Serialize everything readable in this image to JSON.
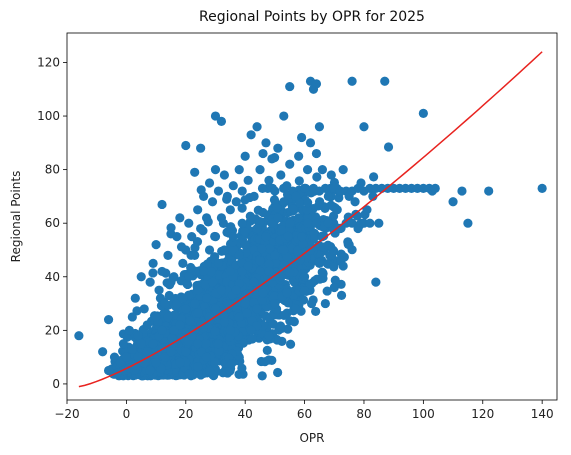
{
  "chart_data": {
    "type": "scatter",
    "title": "Regional Points by OPR for 2025",
    "xlabel": "OPR",
    "ylabel": "Regional Points",
    "xlim": [
      -20,
      145
    ],
    "ylim": [
      -6,
      131
    ],
    "xticks": [
      -20,
      0,
      20,
      40,
      60,
      80,
      100,
      120,
      140
    ],
    "yticks": [
      0,
      20,
      40,
      60,
      80,
      100,
      120
    ],
    "grid": false,
    "colors": {
      "points": "#1f77b4",
      "fit": "#e8231f"
    },
    "series": [
      {
        "type": "scatter",
        "points": [
          [
            -16,
            18
          ],
          [
            -8,
            12
          ],
          [
            -6,
            24
          ],
          [
            -6,
            5
          ],
          [
            -4,
            10
          ],
          [
            -3,
            4
          ],
          [
            -2,
            8
          ],
          [
            -1,
            15
          ],
          [
            -1,
            5
          ],
          [
            0,
            10
          ],
          [
            1,
            20
          ],
          [
            1,
            6
          ],
          [
            2,
            25
          ],
          [
            2,
            13
          ],
          [
            3,
            32
          ],
          [
            3,
            7
          ],
          [
            4,
            18
          ],
          [
            4,
            10
          ],
          [
            5,
            40
          ],
          [
            5,
            15
          ],
          [
            6,
            28
          ],
          [
            6,
            8
          ],
          [
            7,
            22
          ],
          [
            7,
            12
          ],
          [
            8,
            38
          ],
          [
            8,
            5
          ],
          [
            9,
            45
          ],
          [
            9,
            15
          ],
          [
            10,
            52
          ],
          [
            10,
            25
          ],
          [
            10,
            8
          ],
          [
            11,
            35
          ],
          [
            11,
            18
          ],
          [
            12,
            67
          ],
          [
            12,
            42
          ],
          [
            12,
            20
          ],
          [
            13,
            30
          ],
          [
            13,
            10
          ],
          [
            14,
            48
          ],
          [
            14,
            25
          ],
          [
            15,
            56
          ],
          [
            15,
            38
          ],
          [
            15,
            12
          ],
          [
            16,
            40
          ],
          [
            16,
            20
          ],
          [
            17,
            55
          ],
          [
            17,
            30
          ],
          [
            18,
            62
          ],
          [
            18,
            22
          ],
          [
            18,
            8
          ],
          [
            19,
            45
          ],
          [
            19,
            32
          ],
          [
            20,
            89
          ],
          [
            20,
            50
          ],
          [
            20,
            28
          ],
          [
            20,
            12
          ],
          [
            21,
            60
          ],
          [
            21,
            40
          ],
          [
            22,
            55
          ],
          [
            22,
            18
          ],
          [
            23,
            79
          ],
          [
            23,
            48
          ],
          [
            23,
            30
          ],
          [
            24,
            65
          ],
          [
            24,
            35
          ],
          [
            24,
            15
          ],
          [
            25,
            88
          ],
          [
            25,
            58
          ],
          [
            25,
            22
          ],
          [
            26,
            70
          ],
          [
            26,
            42
          ],
          [
            27,
            62
          ],
          [
            27,
            32
          ],
          [
            27,
            10
          ],
          [
            28,
            75
          ],
          [
            28,
            50
          ],
          [
            28,
            25
          ],
          [
            29,
            68
          ],
          [
            29,
            38
          ],
          [
            30,
            100
          ],
          [
            30,
            80
          ],
          [
            30,
            55
          ],
          [
            30,
            28
          ],
          [
            31,
            72
          ],
          [
            31,
            45
          ],
          [
            31,
            15
          ],
          [
            32,
            98
          ],
          [
            32,
            62
          ],
          [
            32,
            35
          ],
          [
            33,
            78
          ],
          [
            33,
            50
          ],
          [
            34,
            70
          ],
          [
            34,
            30
          ],
          [
            35,
            65
          ],
          [
            35,
            42
          ],
          [
            35,
            20
          ],
          [
            36,
            74
          ],
          [
            36,
            55
          ],
          [
            37,
            68
          ],
          [
            37,
            35
          ],
          [
            38,
            80
          ],
          [
            38,
            48
          ],
          [
            38,
            25
          ],
          [
            39,
            72
          ],
          [
            39,
            60
          ],
          [
            40,
            85
          ],
          [
            40,
            52
          ],
          [
            40,
            30
          ],
          [
            41,
            76
          ],
          [
            41,
            44
          ],
          [
            42,
            93
          ],
          [
            42,
            62
          ],
          [
            42,
            20
          ],
          [
            43,
            70
          ],
          [
            43,
            38
          ],
          [
            44,
            96
          ],
          [
            44,
            58
          ],
          [
            44,
            28
          ],
          [
            45,
            80
          ],
          [
            45,
            46
          ],
          [
            46,
            86
          ],
          [
            46,
            64
          ],
          [
            46,
            34
          ],
          [
            47,
            90
          ],
          [
            47,
            55
          ],
          [
            48,
            76
          ],
          [
            48,
            42
          ],
          [
            48,
            18
          ],
          [
            49,
            84
          ],
          [
            49,
            60
          ],
          [
            50,
            72
          ],
          [
            50,
            48
          ],
          [
            50,
            30
          ],
          [
            51,
            88
          ],
          [
            51,
            62
          ],
          [
            52,
            78
          ],
          [
            52,
            40
          ],
          [
            53,
            100
          ],
          [
            53,
            68
          ],
          [
            53,
            50
          ],
          [
            54,
            74
          ],
          [
            54,
            34
          ],
          [
            55,
            111
          ],
          [
            55,
            82
          ],
          [
            55,
            60
          ],
          [
            56,
            72
          ],
          [
            56,
            45
          ],
          [
            57,
            70
          ],
          [
            57,
            28
          ],
          [
            58,
            85
          ],
          [
            58,
            62
          ],
          [
            59,
            92
          ],
          [
            59,
            55
          ],
          [
            60,
            73
          ],
          [
            60,
            40
          ],
          [
            61,
            80
          ],
          [
            61,
            60
          ],
          [
            62,
            113
          ],
          [
            62,
            90
          ],
          [
            62,
            50
          ],
          [
            63,
            110
          ],
          [
            63,
            73
          ],
          [
            64,
            112
          ],
          [
            64,
            86
          ],
          [
            64,
            60
          ],
          [
            65,
            96
          ],
          [
            65,
            72
          ],
          [
            65,
            45
          ],
          [
            66,
            80
          ],
          [
            66,
            55
          ],
          [
            67,
            73
          ],
          [
            67,
            30
          ],
          [
            68,
            70
          ],
          [
            68,
            60
          ],
          [
            69,
            78
          ],
          [
            69,
            48
          ],
          [
            70,
            73
          ],
          [
            70,
            36
          ],
          [
            71,
            65
          ],
          [
            72,
            72
          ],
          [
            72,
            58
          ],
          [
            73,
            80
          ],
          [
            73,
            44
          ],
          [
            74,
            72
          ],
          [
            74,
            60
          ],
          [
            75,
            70
          ],
          [
            75,
            52
          ],
          [
            76,
            113
          ],
          [
            76,
            72
          ],
          [
            76,
            60
          ],
          [
            77,
            68
          ],
          [
            78,
            73
          ],
          [
            78,
            58
          ],
          [
            79,
            75
          ],
          [
            79,
            60
          ],
          [
            80,
            96
          ],
          [
            80,
            72
          ],
          [
            80,
            60
          ],
          [
            81,
            65
          ],
          [
            82,
            73
          ],
          [
            82,
            60
          ],
          [
            83,
            70
          ],
          [
            84,
            73
          ],
          [
            84,
            38
          ],
          [
            85,
            60
          ],
          [
            86,
            73
          ],
          [
            87,
            113
          ],
          [
            88,
            73
          ],
          [
            90,
            73
          ],
          [
            92,
            73
          ],
          [
            94,
            73
          ],
          [
            96,
            73
          ],
          [
            98,
            73
          ],
          [
            100,
            101
          ],
          [
            100,
            73
          ],
          [
            102,
            73
          ],
          [
            103,
            72
          ],
          [
            104,
            73
          ],
          [
            110,
            68
          ],
          [
            113,
            72
          ],
          [
            115,
            60
          ],
          [
            122,
            72
          ],
          [
            140,
            73
          ]
        ],
        "clusters": [
          {
            "cx": 18,
            "cy": 14,
            "sx": 9,
            "sy": 8,
            "n": 900
          },
          {
            "cx": 32,
            "cy": 28,
            "sx": 11,
            "sy": 12,
            "n": 700
          },
          {
            "cx": 45,
            "cy": 40,
            "sx": 10,
            "sy": 13,
            "n": 500
          },
          {
            "cx": 8,
            "cy": 8,
            "sx": 5,
            "sy": 4,
            "n": 350
          },
          {
            "cx": 58,
            "cy": 52,
            "sx": 8,
            "sy": 12,
            "n": 260
          }
        ]
      },
      {
        "type": "line",
        "curve": "power",
        "x_start": -16,
        "x_end": 140,
        "y_start": -1,
        "y_end": 124
      }
    ]
  }
}
